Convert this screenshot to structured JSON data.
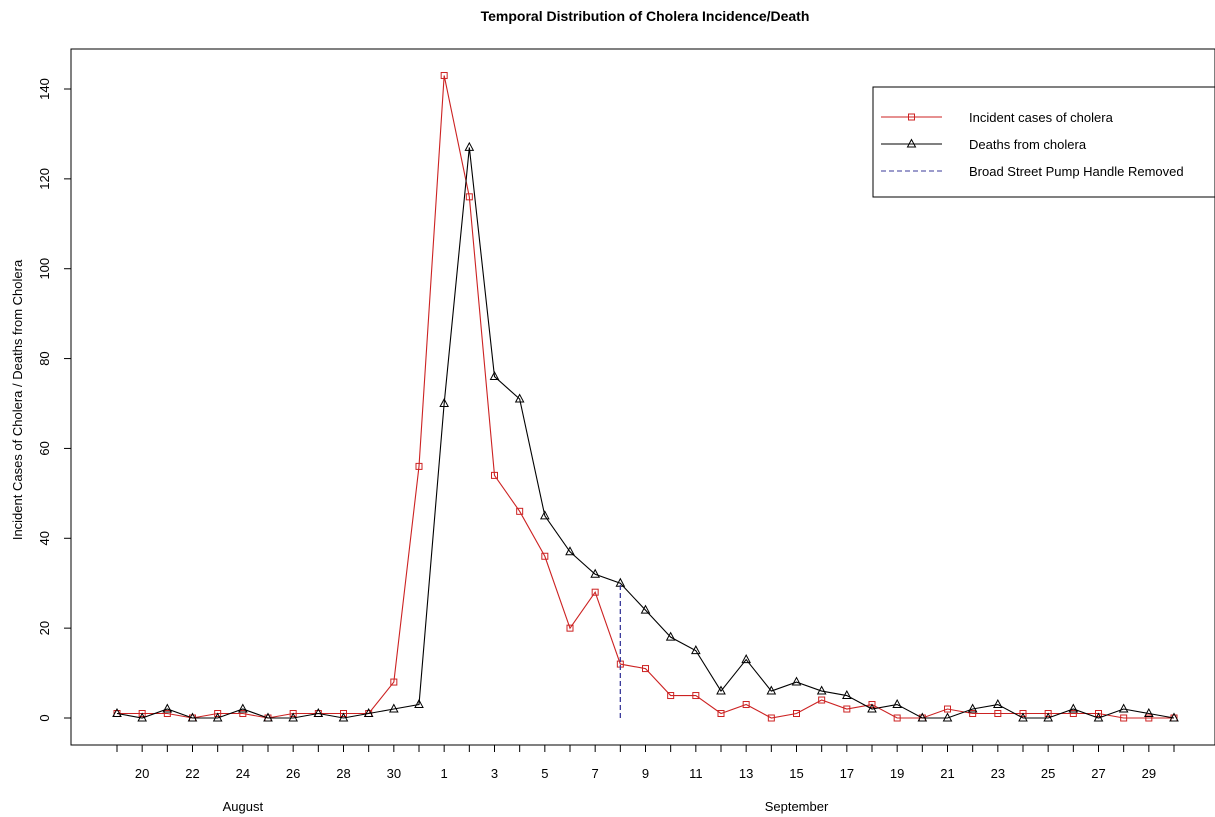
{
  "chart_data": {
    "type": "line",
    "title": "Temporal Distribution of Cholera Incidence/Death",
    "ylabel": "Incident Cases of Cholera / Deaths from Cholera",
    "ylim": [
      0,
      140
    ],
    "yticks": [
      0,
      20,
      40,
      60,
      80,
      100,
      120,
      140
    ],
    "xlim": [
      "1854-08-19",
      "1854-09-30"
    ],
    "x_tick_labels": [
      {
        "date": "1854-08-20",
        "label": "20"
      },
      {
        "date": "1854-08-22",
        "label": "22"
      },
      {
        "date": "1854-08-24",
        "label": "24"
      },
      {
        "date": "1854-08-26",
        "label": "26"
      },
      {
        "date": "1854-08-28",
        "label": "28"
      },
      {
        "date": "1854-08-30",
        "label": "30"
      },
      {
        "date": "1854-09-01",
        "label": "1"
      },
      {
        "date": "1854-09-03",
        "label": "3"
      },
      {
        "date": "1854-09-05",
        "label": "5"
      },
      {
        "date": "1854-09-07",
        "label": "7"
      },
      {
        "date": "1854-09-09",
        "label": "9"
      },
      {
        "date": "1854-09-11",
        "label": "11"
      },
      {
        "date": "1854-09-13",
        "label": "13"
      },
      {
        "date": "1854-09-15",
        "label": "15"
      },
      {
        "date": "1854-09-17",
        "label": "17"
      },
      {
        "date": "1854-09-19",
        "label": "19"
      },
      {
        "date": "1854-09-21",
        "label": "21"
      },
      {
        "date": "1854-09-23",
        "label": "23"
      },
      {
        "date": "1854-09-25",
        "label": "25"
      },
      {
        "date": "1854-09-27",
        "label": "27"
      },
      {
        "date": "1854-09-29",
        "label": "29"
      }
    ],
    "month_labels": [
      {
        "date": "1854-08-24",
        "label": "August"
      },
      {
        "date": "1854-09-15",
        "label": "September"
      }
    ],
    "x": [
      "1854-08-19",
      "1854-08-20",
      "1854-08-21",
      "1854-08-22",
      "1854-08-23",
      "1854-08-24",
      "1854-08-25",
      "1854-08-26",
      "1854-08-27",
      "1854-08-28",
      "1854-08-29",
      "1854-08-30",
      "1854-08-31",
      "1854-09-01",
      "1854-09-02",
      "1854-09-03",
      "1854-09-04",
      "1854-09-05",
      "1854-09-06",
      "1854-09-07",
      "1854-09-08",
      "1854-09-09",
      "1854-09-10",
      "1854-09-11",
      "1854-09-12",
      "1854-09-13",
      "1854-09-14",
      "1854-09-15",
      "1854-09-16",
      "1854-09-17",
      "1854-09-18",
      "1854-09-19",
      "1854-09-20",
      "1854-09-21",
      "1854-09-22",
      "1854-09-23",
      "1854-09-24",
      "1854-09-25",
      "1854-09-26",
      "1854-09-27",
      "1854-09-28",
      "1854-09-29",
      "1854-09-30"
    ],
    "series": [
      {
        "name": "Incident cases of cholera",
        "color": "#cc2222",
        "marker": "square",
        "values": [
          1,
          1,
          1,
          0,
          1,
          1,
          0,
          1,
          1,
          1,
          1,
          8,
          56,
          143,
          116,
          54,
          46,
          36,
          20,
          28,
          12,
          11,
          5,
          5,
          1,
          3,
          0,
          1,
          4,
          2,
          3,
          0,
          0,
          2,
          1,
          1,
          1,
          1,
          1,
          1,
          0,
          0,
          0
        ]
      },
      {
        "name": "Deaths from cholera",
        "color": "#000000",
        "marker": "triangle",
        "values": [
          1,
          0,
          2,
          0,
          0,
          2,
          0,
          0,
          1,
          0,
          1,
          2,
          3,
          70,
          127,
          76,
          71,
          45,
          37,
          32,
          30,
          24,
          18,
          15,
          6,
          13,
          6,
          8,
          6,
          5,
          2,
          3,
          0,
          0,
          2,
          3,
          0,
          0,
          2,
          0,
          2,
          1,
          0
        ]
      }
    ],
    "vline": {
      "name": "Broad Street Pump Handle Removed",
      "date": "1854-09-08",
      "from": 0,
      "to": 30,
      "color": "#3a3a9a",
      "style": "dashed"
    },
    "legend_position": "top-right",
    "grid": false
  }
}
